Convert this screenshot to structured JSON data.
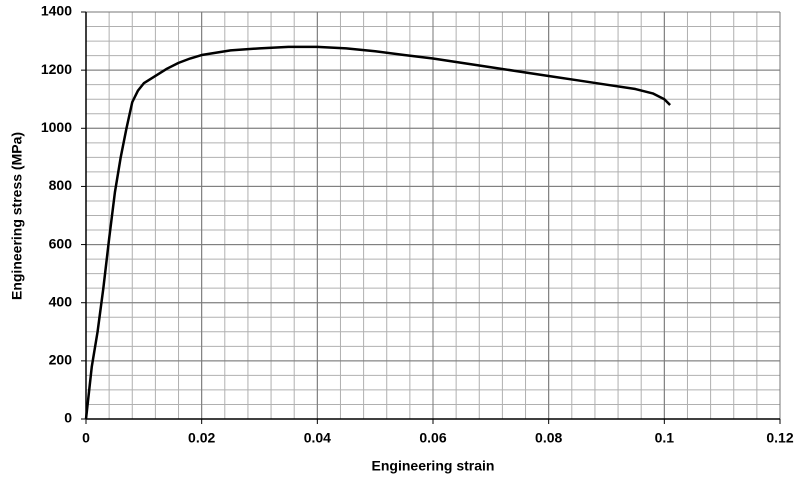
{
  "chart_data": {
    "type": "line",
    "x_label": "Engineering strain",
    "y_label": "Engineering stress (MPa)",
    "series": [
      {
        "color": "#000000",
        "x": [
          0,
          0.001,
          0.002,
          0.003,
          0.004,
          0.005,
          0.006,
          0.007,
          0.008,
          0.009,
          0.01,
          0.012,
          0.014,
          0.016,
          0.018,
          0.02,
          0.025,
          0.03,
          0.035,
          0.04,
          0.045,
          0.05,
          0.055,
          0.06,
          0.065,
          0.07,
          0.075,
          0.08,
          0.085,
          0.09,
          0.095,
          0.098,
          0.1,
          0.101
        ],
        "values": [
          0,
          180,
          300,
          450,
          620,
          780,
          900,
          1000,
          1090,
          1130,
          1155,
          1180,
          1205,
          1225,
          1240,
          1252,
          1268,
          1275,
          1280,
          1280,
          1275,
          1265,
          1252,
          1240,
          1225,
          1210,
          1195,
          1180,
          1165,
          1150,
          1135,
          1120,
          1100,
          1080
        ]
      }
    ],
    "xlim": [
      0,
      0.12
    ],
    "xticks": [
      0,
      0.02,
      0.04,
      0.06,
      0.08,
      0.1,
      0.12
    ],
    "ylim": [
      0,
      1400
    ],
    "yticks": [
      0,
      200,
      400,
      600,
      800,
      1000,
      1200,
      1400
    ],
    "grid": true,
    "minor_grid": {
      "x": 0.004,
      "y": 50
    }
  }
}
